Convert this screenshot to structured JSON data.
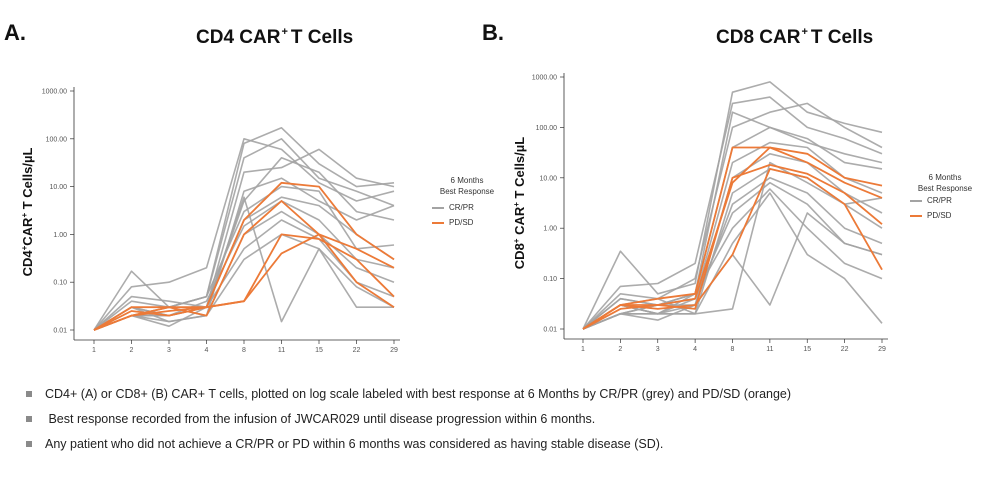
{
  "colors": {
    "cr_pr": "#a3a3a3",
    "pd_sd": "#ec7a38",
    "axis": "#333333"
  },
  "panels": [
    {
      "panel_label": "A.",
      "title_pre": "CD4 CAR",
      "title_sup": "+",
      "title_post": "T Cells",
      "ylabel_pre": "CD4",
      "ylabel_sup1": "+",
      "ylabel_mid": "CAR",
      "ylabel_sup2": "+",
      "ylabel_post": " T Cells/µL",
      "legend_title_1": "6 Months",
      "legend_title_2": "Best Response",
      "legend_items": [
        "CR/PR",
        "PD/SD"
      ]
    },
    {
      "panel_label": "B.",
      "title_pre": "CD8 CAR",
      "title_sup": "+",
      "title_post": "T Cells",
      "ylabel_pre": "CD8",
      "ylabel_sup1": "+",
      "ylabel_mid": " CAR",
      "ylabel_sup2": "+",
      "ylabel_post": " T Cells/µL",
      "legend_title_1": "6 Months",
      "legend_title_2": "Best Response",
      "legend_items": [
        "CR/PR",
        "PD/SD"
      ]
    }
  ],
  "chart_data": [
    {
      "type": "line",
      "title": "CD4 CAR+ T Cells",
      "xlabel": "",
      "ylabel": "CD4+CAR+ T Cells/µL",
      "yscale": "log",
      "ylim": [
        0.01,
        1000
      ],
      "ytick_labels": [
        "0.01",
        "0.10",
        "1.00",
        "10.00",
        "100.00",
        "1000.00"
      ],
      "ytick_values": [
        0.01,
        0.1,
        1,
        10,
        100,
        1000
      ],
      "categories": [
        "1",
        "2",
        "3",
        "4",
        "8",
        "11",
        "15",
        "22",
        "29"
      ],
      "legend": [
        "CR/PR",
        "PD/SD"
      ],
      "series": [
        {
          "group": "CR/PR",
          "values": [
            0.01,
            0.17,
            0.03,
            0.05,
            80,
            170,
            30,
            10,
            12
          ]
        },
        {
          "group": "CR/PR",
          "values": [
            0.01,
            0.08,
            0.1,
            0.2,
            100,
            60,
            12,
            5,
            8
          ]
        },
        {
          "group": "CR/PR",
          "values": [
            0.01,
            0.05,
            0.04,
            0.03,
            20,
            25,
            60,
            15,
            10
          ]
        },
        {
          "group": "CR/PR",
          "values": [
            0.01,
            0.03,
            0.02,
            0.03,
            5,
            40,
            20,
            3,
            2
          ]
        },
        {
          "group": "CR/PR",
          "values": [
            0.01,
            0.02,
            0.015,
            0.02,
            8,
            15,
            5,
            2,
            4
          ]
        },
        {
          "group": "CR/PR",
          "values": [
            0.01,
            0.04,
            0.03,
            0.05,
            3,
            10,
            8,
            0.5,
            0.6
          ]
        },
        {
          "group": "CR/PR",
          "values": [
            0.01,
            0.02,
            0.012,
            0.03,
            2,
            6,
            4,
            1,
            0.3
          ]
        },
        {
          "group": "CR/PR",
          "values": [
            0.01,
            0.03,
            0.02,
            0.04,
            1.5,
            5,
            2,
            0.3,
            0.2
          ]
        },
        {
          "group": "CR/PR",
          "values": [
            0.01,
            0.02,
            0.03,
            0.02,
            1,
            3,
            1,
            0.2,
            0.1
          ]
        },
        {
          "group": "CR/PR",
          "values": [
            0.01,
            0.02,
            0.02,
            0.03,
            0.5,
            2,
            0.8,
            0.1,
            0.05
          ]
        },
        {
          "group": "CR/PR",
          "values": [
            0.01,
            0.03,
            0.015,
            0.02,
            0.3,
            1,
            0.5,
            0.08,
            0.03
          ]
        },
        {
          "group": "CR/PR",
          "values": [
            0.01,
            0.02,
            0.02,
            0.03,
            6,
            0.015,
            0.5,
            0.03,
            0.03
          ]
        },
        {
          "group": "CR/PR",
          "values": [
            0.01,
            0.02,
            0.03,
            0.05,
            40,
            100,
            15,
            8,
            4
          ]
        },
        {
          "group": "PD/SD",
          "values": [
            0.01,
            0.025,
            0.02,
            0.03,
            2,
            12,
            10,
            1,
            0.3
          ]
        },
        {
          "group": "PD/SD",
          "values": [
            0.01,
            0.03,
            0.03,
            0.02,
            1,
            5,
            1,
            0.5,
            0.2
          ]
        },
        {
          "group": "PD/SD",
          "values": [
            0.01,
            0.02,
            0.025,
            0.03,
            0.04,
            1,
            0.8,
            0.3,
            0.05
          ]
        },
        {
          "group": "PD/SD",
          "values": [
            0.01,
            0.02,
            0.03,
            0.03,
            0.04,
            0.4,
            1,
            0.1,
            0.03
          ]
        }
      ]
    },
    {
      "type": "line",
      "title": "CD8 CAR+ T Cells",
      "xlabel": "",
      "ylabel": "CD8+ CAR+ T Cells/µL",
      "yscale": "log",
      "ylim": [
        0.01,
        1000
      ],
      "ytick_labels": [
        "0.01",
        "0.10",
        "1.00",
        "10.00",
        "100.00",
        "1000.00"
      ],
      "ytick_values": [
        0.01,
        0.1,
        1,
        10,
        100,
        1000
      ],
      "categories": [
        "1",
        "2",
        "3",
        "4",
        "8",
        "11",
        "15",
        "22",
        "29"
      ],
      "legend": [
        "CR/PR",
        "PD/SD"
      ],
      "series": [
        {
          "group": "CR/PR",
          "values": [
            0.01,
            0.35,
            0.05,
            0.08,
            500,
            800,
            200,
            120,
            80
          ]
        },
        {
          "group": "CR/PR",
          "values": [
            0.01,
            0.07,
            0.08,
            0.2,
            300,
            400,
            100,
            60,
            30
          ]
        },
        {
          "group": "CR/PR",
          "values": [
            0.01,
            0.05,
            0.04,
            0.1,
            100,
            200,
            300,
            100,
            40
          ]
        },
        {
          "group": "CR/PR",
          "values": [
            0.01,
            0.04,
            0.03,
            0.05,
            40,
            100,
            60,
            20,
            15
          ]
        },
        {
          "group": "CR/PR",
          "values": [
            0.01,
            0.03,
            0.02,
            0.04,
            20,
            50,
            40,
            10,
            5
          ]
        },
        {
          "group": "CR/PR",
          "values": [
            0.01,
            0.02,
            0.03,
            0.03,
            10,
            30,
            20,
            5,
            2
          ]
        },
        {
          "group": "CR/PR",
          "values": [
            0.01,
            0.03,
            0.02,
            0.02,
            5,
            15,
            10,
            3,
            1
          ]
        },
        {
          "group": "CR/PR",
          "values": [
            0.01,
            0.02,
            0.015,
            0.03,
            3,
            10,
            5,
            1,
            0.5
          ]
        },
        {
          "group": "CR/PR",
          "values": [
            0.01,
            0.04,
            0.03,
            0.04,
            2,
            8,
            3,
            0.5,
            0.3
          ]
        },
        {
          "group": "CR/PR",
          "values": [
            0.01,
            0.02,
            0.02,
            0.05,
            1,
            6,
            1,
            0.2,
            0.1
          ]
        },
        {
          "group": "CR/PR",
          "values": [
            0.01,
            0.03,
            0.04,
            0.02,
            0.5,
            5,
            0.3,
            0.1,
            0.013
          ]
        },
        {
          "group": "CR/PR",
          "values": [
            0.01,
            0.02,
            0.02,
            0.03,
            0.3,
            0.03,
            2,
            0.5,
            0.3
          ]
        },
        {
          "group": "CR/PR",
          "values": [
            0.01,
            0.03,
            0.02,
            0.02,
            0.025,
            20,
            8,
            3,
            4
          ]
        },
        {
          "group": "CR/PR",
          "values": [
            0.01,
            0.02,
            0.03,
            0.05,
            200,
            100,
            50,
            30,
            20
          ]
        },
        {
          "group": "PD/SD",
          "values": [
            0.01,
            0.03,
            0.03,
            0.04,
            8,
            40,
            30,
            10,
            7
          ]
        },
        {
          "group": "PD/SD",
          "values": [
            0.01,
            0.03,
            0.04,
            0.05,
            40,
            40,
            20,
            8,
            4
          ]
        },
        {
          "group": "PD/SD",
          "values": [
            0.01,
            0.025,
            0.03,
            0.025,
            10,
            18,
            12,
            5,
            1.2
          ]
        },
        {
          "group": "PD/SD",
          "values": [
            0.01,
            0.03,
            0.025,
            0.03,
            0.3,
            15,
            10,
            3,
            0.15
          ]
        }
      ]
    }
  ],
  "notes": [
    "CD4+ (A) or CD8+ (B) CAR+ T cells, plotted on log scale labeled with best response at 6 Months by CR/PR (grey) and PD/SD (orange)",
    " Best response recorded from the infusion of JWCAR029 until disease progression within 6 months.",
    "Any patient who did not achieve a CR/PR or PD within 6 months was considered as having stable disease (SD)."
  ]
}
